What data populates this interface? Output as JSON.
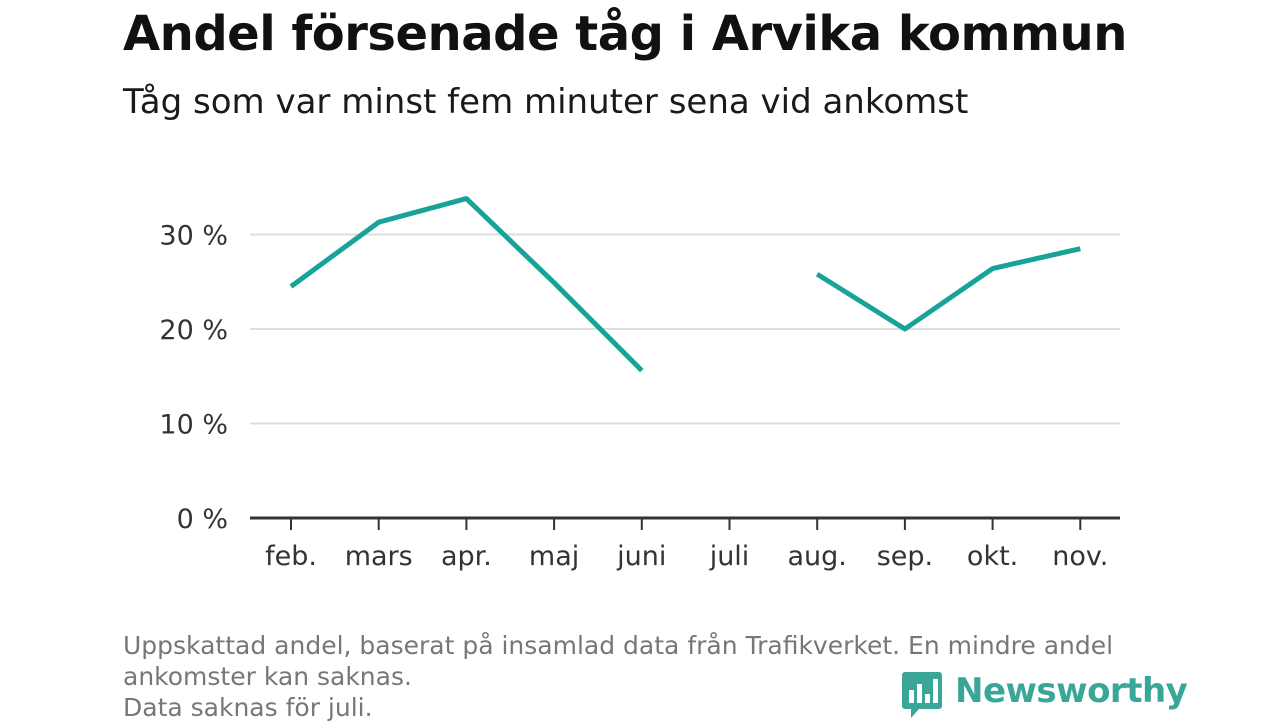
{
  "header": {
    "title": "Andel försenade tåg i Arvika kommun",
    "subtitle": "Tåg som var minst fem minuter sena vid ankomst"
  },
  "chart_data": {
    "type": "line",
    "categories": [
      "feb.",
      "mars",
      "apr.",
      "maj",
      "juni",
      "juli",
      "aug.",
      "sep.",
      "okt.",
      "nov."
    ],
    "series": [
      {
        "values": [
          24.5,
          31.3,
          33.8,
          24.9,
          15.6,
          null,
          25.8,
          20.0,
          26.4,
          28.5
        ]
      }
    ],
    "y_ticks": [
      0,
      10,
      20,
      30
    ],
    "y_tick_labels": [
      "0 %",
      "10 %",
      "20 %",
      "30 %"
    ],
    "ylim": [
      0,
      35
    ],
    "grid": true,
    "line_color": "#17a398"
  },
  "footnote": {
    "line1": "Uppskattad andel, baserat på insamlad data från Trafikverket. En mindre andel",
    "line2": "ankomster kan saknas.",
    "line3": "Data saknas för juli."
  },
  "logo": {
    "text": "Newsworthy",
    "icon": "bar-chart-speech-bubble-icon",
    "color": "#3aa698"
  }
}
